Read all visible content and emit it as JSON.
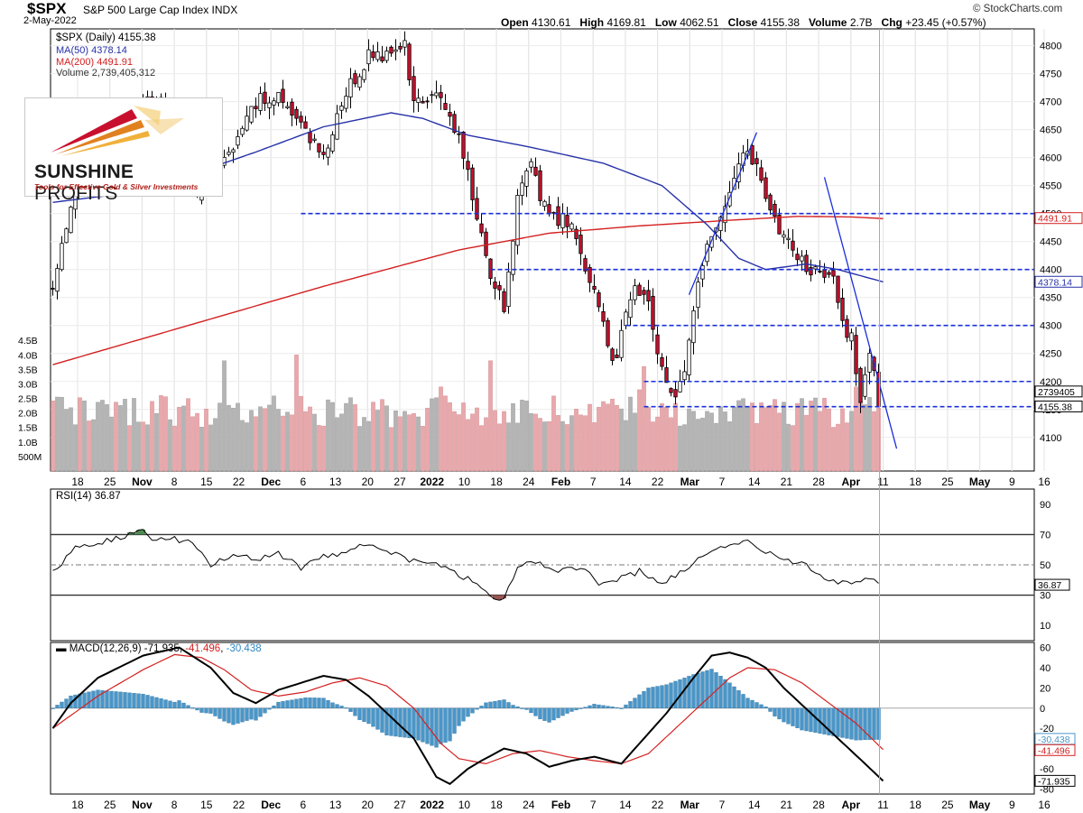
{
  "header": {
    "symbol": "$SPX",
    "name": "S&P 500 Large Cap Index INDX",
    "date": "2-May-2022",
    "open_label": "Open",
    "open": "4130.61",
    "high_label": "High",
    "high": "4169.81",
    "low_label": "Low",
    "low": "4062.51",
    "close_label": "Close",
    "close": "4155.38",
    "volume_label": "Volume",
    "volume": "2.7B",
    "chg_label": "Chg",
    "chg": "+23.45 (+0.57%)",
    "copyright": "© StockCharts.com"
  },
  "legend": {
    "price": "$SPX (Daily) 4155.38",
    "ma50": "MA(50) 4378.14",
    "ma200": "MA(200) 4491.91",
    "volume": "Volume 2,739,405,312"
  },
  "logo": {
    "main_bold": "SUNSHINE",
    "main_thin": "PROFITS",
    "tagline": "Tools for Effective Gold & Silver Investments"
  },
  "rsi_legend": "RSI(14) 36.87",
  "macd_legend": {
    "label": "MACD(12,26,9)",
    "macd": "-71.935",
    "signal": "-41.496",
    "hist": "-30.438"
  },
  "colors": {
    "up": "#ffffff",
    "down": "#c8102e",
    "ma50": "#2631a8",
    "ma200": "#d42020",
    "vol_up": "#b4b4b4",
    "vol_down": "#e8a8ac",
    "hline": "#1a2fd8",
    "hist": "#4a96c8",
    "rsi_over": "#4f8a52",
    "rsi_under": "#9a5550"
  },
  "chart_data": [
    {
      "type": "candlestick",
      "title": "$SPX S&P 500 Large Cap Index INDX",
      "ylim": [
        4040,
        4830
      ],
      "yticks": [
        4100,
        4150,
        4200,
        4250,
        4300,
        4350,
        4400,
        4450,
        4500,
        4550,
        4600,
        4650,
        4700,
        4750,
        4800
      ],
      "x_tick_labels": [
        "18",
        "25",
        "Nov",
        "8",
        "15",
        "22",
        "Dec",
        "6",
        "13",
        "20",
        "27",
        "2022",
        "10",
        "18",
        "24",
        "Feb",
        "7",
        "14",
        "22",
        "Mar",
        "7",
        "14",
        "21",
        "28",
        "Apr",
        "11",
        "18",
        "25",
        "May",
        "9",
        "16"
      ],
      "ohlc_anchors": [
        [
          0,
          4360
        ],
        [
          5,
          4550
        ],
        [
          10,
          4610
        ],
        [
          15,
          4660
        ],
        [
          20,
          4700
        ],
        [
          25,
          4680
        ],
        [
          30,
          4620
        ],
        [
          32,
          4530
        ],
        [
          35,
          4580
        ],
        [
          40,
          4620
        ],
        [
          45,
          4700
        ],
        [
          50,
          4710
        ],
        [
          55,
          4660
        ],
        [
          60,
          4600
        ],
        [
          65,
          4720
        ],
        [
          70,
          4780
        ],
        [
          75,
          4790
        ],
        [
          78,
          4800
        ],
        [
          80,
          4700
        ],
        [
          85,
          4720
        ],
        [
          90,
          4640
        ],
        [
          95,
          4460
        ],
        [
          97,
          4390
        ],
        [
          100,
          4330
        ],
        [
          103,
          4530
        ],
        [
          106,
          4580
        ],
        [
          109,
          4510
        ],
        [
          112,
          4490
        ],
        [
          115,
          4480
        ],
        [
          118,
          4410
        ],
        [
          121,
          4330
        ],
        [
          124,
          4230
        ],
        [
          126,
          4280
        ],
        [
          129,
          4380
        ],
        [
          132,
          4330
        ],
        [
          135,
          4220
        ],
        [
          138,
          4170
        ],
        [
          141,
          4260
        ],
        [
          144,
          4420
        ],
        [
          147,
          4480
        ],
        [
          150,
          4550
        ],
        [
          153,
          4620
        ],
        [
          156,
          4580
        ],
        [
          158,
          4540
        ],
        [
          161,
          4470
        ],
        [
          164,
          4440
        ],
        [
          167,
          4400
        ],
        [
          170,
          4410
        ],
        [
          173,
          4380
        ],
        [
          175,
          4300
        ],
        [
          177,
          4280
        ],
        [
          179,
          4150
        ],
        [
          181,
          4260
        ],
        [
          183,
          4155
        ]
      ],
      "last_close": 4155.38,
      "ma50_label": "4378.14",
      "ma200_label": "4491.91",
      "close_label": "4155.38",
      "horizontal_levels": [
        4500,
        4400,
        4300,
        4200,
        4155
      ],
      "trendlines": [
        {
          "from": [
            141,
            4355
          ],
          "to": [
            156,
            4645
          ]
        },
        {
          "from": [
            171,
            4565
          ],
          "to": [
            187,
            4080
          ]
        }
      ],
      "ma50_anchors": [
        [
          0,
          4520
        ],
        [
          20,
          4540
        ],
        [
          45,
          4610
        ],
        [
          60,
          4655
        ],
        [
          75,
          4680
        ],
        [
          82,
          4670
        ],
        [
          92,
          4640
        ],
        [
          105,
          4620
        ],
        [
          122,
          4590
        ],
        [
          135,
          4550
        ],
        [
          145,
          4480
        ],
        [
          152,
          4420
        ],
        [
          158,
          4400
        ],
        [
          167,
          4410
        ],
        [
          174,
          4400
        ],
        [
          184,
          4378
        ]
      ],
      "ma200_anchors": [
        [
          0,
          4230
        ],
        [
          30,
          4300
        ],
        [
          60,
          4370
        ],
        [
          90,
          4435
        ],
        [
          110,
          4465
        ],
        [
          130,
          4478
        ],
        [
          150,
          4488
        ],
        [
          165,
          4495
        ],
        [
          177,
          4494
        ],
        [
          184,
          4491
        ]
      ]
    },
    {
      "type": "bar",
      "title": "Volume",
      "ylim": [
        0,
        4.6
      ],
      "yticks": [
        "500M",
        "1.0B",
        "1.5B",
        "2.0B",
        "2.5B",
        "3.0B",
        "3.5B",
        "4.0B",
        "4.5B"
      ],
      "ytick_values": [
        0.5,
        1.0,
        1.5,
        2.0,
        2.5,
        3.0,
        3.5,
        4.0,
        4.5
      ],
      "unit": "billions",
      "last_value_label": "2739405",
      "spikes": [
        [
          38,
          3.8
        ],
        [
          54,
          4.0
        ],
        [
          86,
          2.9
        ],
        [
          97,
          3.8
        ],
        [
          119,
          2.3
        ],
        [
          130,
          2.8
        ],
        [
          131,
          3.6
        ],
        [
          166,
          2.5
        ],
        [
          178,
          2.9
        ]
      ]
    },
    {
      "type": "line",
      "title": "RSI(14) 36.87",
      "ylim": [
        0,
        100
      ],
      "yticks": [
        10,
        30,
        50,
        70,
        90
      ],
      "reference_lines": [
        30,
        50,
        70
      ],
      "last_value_label": "36.87",
      "anchors": [
        [
          0,
          45
        ],
        [
          5,
          62
        ],
        [
          10,
          65
        ],
        [
          15,
          68
        ],
        [
          18,
          72
        ],
        [
          20,
          73
        ],
        [
          22,
          68
        ],
        [
          30,
          66
        ],
        [
          35,
          50
        ],
        [
          40,
          57
        ],
        [
          45,
          54
        ],
        [
          50,
          58
        ],
        [
          55,
          48
        ],
        [
          60,
          55
        ],
        [
          65,
          59
        ],
        [
          70,
          65
        ],
        [
          75,
          58
        ],
        [
          80,
          52
        ],
        [
          85,
          50
        ],
        [
          90,
          44
        ],
        [
          95,
          35
        ],
        [
          98,
          29
        ],
        [
          100,
          28
        ],
        [
          103,
          48
        ],
        [
          107,
          52
        ],
        [
          112,
          46
        ],
        [
          117,
          48
        ],
        [
          121,
          38
        ],
        [
          125,
          40
        ],
        [
          130,
          46
        ],
        [
          135,
          38
        ],
        [
          140,
          46
        ],
        [
          145,
          58
        ],
        [
          150,
          62
        ],
        [
          154,
          66
        ],
        [
          158,
          58
        ],
        [
          162,
          53
        ],
        [
          167,
          50
        ],
        [
          172,
          40
        ],
        [
          177,
          38
        ],
        [
          181,
          42
        ],
        [
          184,
          37
        ]
      ]
    },
    {
      "type": "line",
      "title": "MACD(12,26,9) -71.935, -41.496, -30.438",
      "ylim": [
        -85,
        65
      ],
      "yticks": [
        60,
        40,
        20,
        0,
        -20,
        -40,
        -60,
        -80
      ],
      "last_value_labels": [
        "-30.438",
        "-41.496",
        "-71.935"
      ],
      "macd_anchors": [
        [
          0,
          -20
        ],
        [
          4,
          5
        ],
        [
          10,
          30
        ],
        [
          20,
          52
        ],
        [
          28,
          60
        ],
        [
          35,
          40
        ],
        [
          40,
          15
        ],
        [
          45,
          5
        ],
        [
          50,
          18
        ],
        [
          55,
          25
        ],
        [
          60,
          32
        ],
        [
          65,
          28
        ],
        [
          70,
          12
        ],
        [
          80,
          -30
        ],
        [
          85,
          -68
        ],
        [
          88,
          -75
        ],
        [
          92,
          -60
        ],
        [
          95,
          -52
        ],
        [
          100,
          -40
        ],
        [
          105,
          -45
        ],
        [
          110,
          -58
        ],
        [
          115,
          -52
        ],
        [
          120,
          -48
        ],
        [
          126,
          -55
        ],
        [
          130,
          -35
        ],
        [
          136,
          -5
        ],
        [
          142,
          30
        ],
        [
          146,
          52
        ],
        [
          150,
          55
        ],
        [
          154,
          50
        ],
        [
          158,
          40
        ],
        [
          162,
          20
        ],
        [
          168,
          -5
        ],
        [
          174,
          -30
        ],
        [
          180,
          -55
        ],
        [
          184,
          -72
        ]
      ],
      "signal_anchors": [
        [
          0,
          -20
        ],
        [
          10,
          12
        ],
        [
          20,
          38
        ],
        [
          27,
          53
        ],
        [
          33,
          50
        ],
        [
          38,
          38
        ],
        [
          44,
          18
        ],
        [
          50,
          12
        ],
        [
          56,
          16
        ],
        [
          62,
          25
        ],
        [
          68,
          30
        ],
        [
          74,
          22
        ],
        [
          80,
          0
        ],
        [
          86,
          -35
        ],
        [
          90,
          -50
        ],
        [
          96,
          -55
        ],
        [
          102,
          -45
        ],
        [
          108,
          -42
        ],
        [
          114,
          -48
        ],
        [
          120,
          -52
        ],
        [
          126,
          -55
        ],
        [
          132,
          -45
        ],
        [
          138,
          -20
        ],
        [
          144,
          5
        ],
        [
          150,
          30
        ],
        [
          154,
          40
        ],
        [
          160,
          38
        ],
        [
          166,
          25
        ],
        [
          172,
          5
        ],
        [
          178,
          -15
        ],
        [
          184,
          -41
        ]
      ]
    }
  ]
}
